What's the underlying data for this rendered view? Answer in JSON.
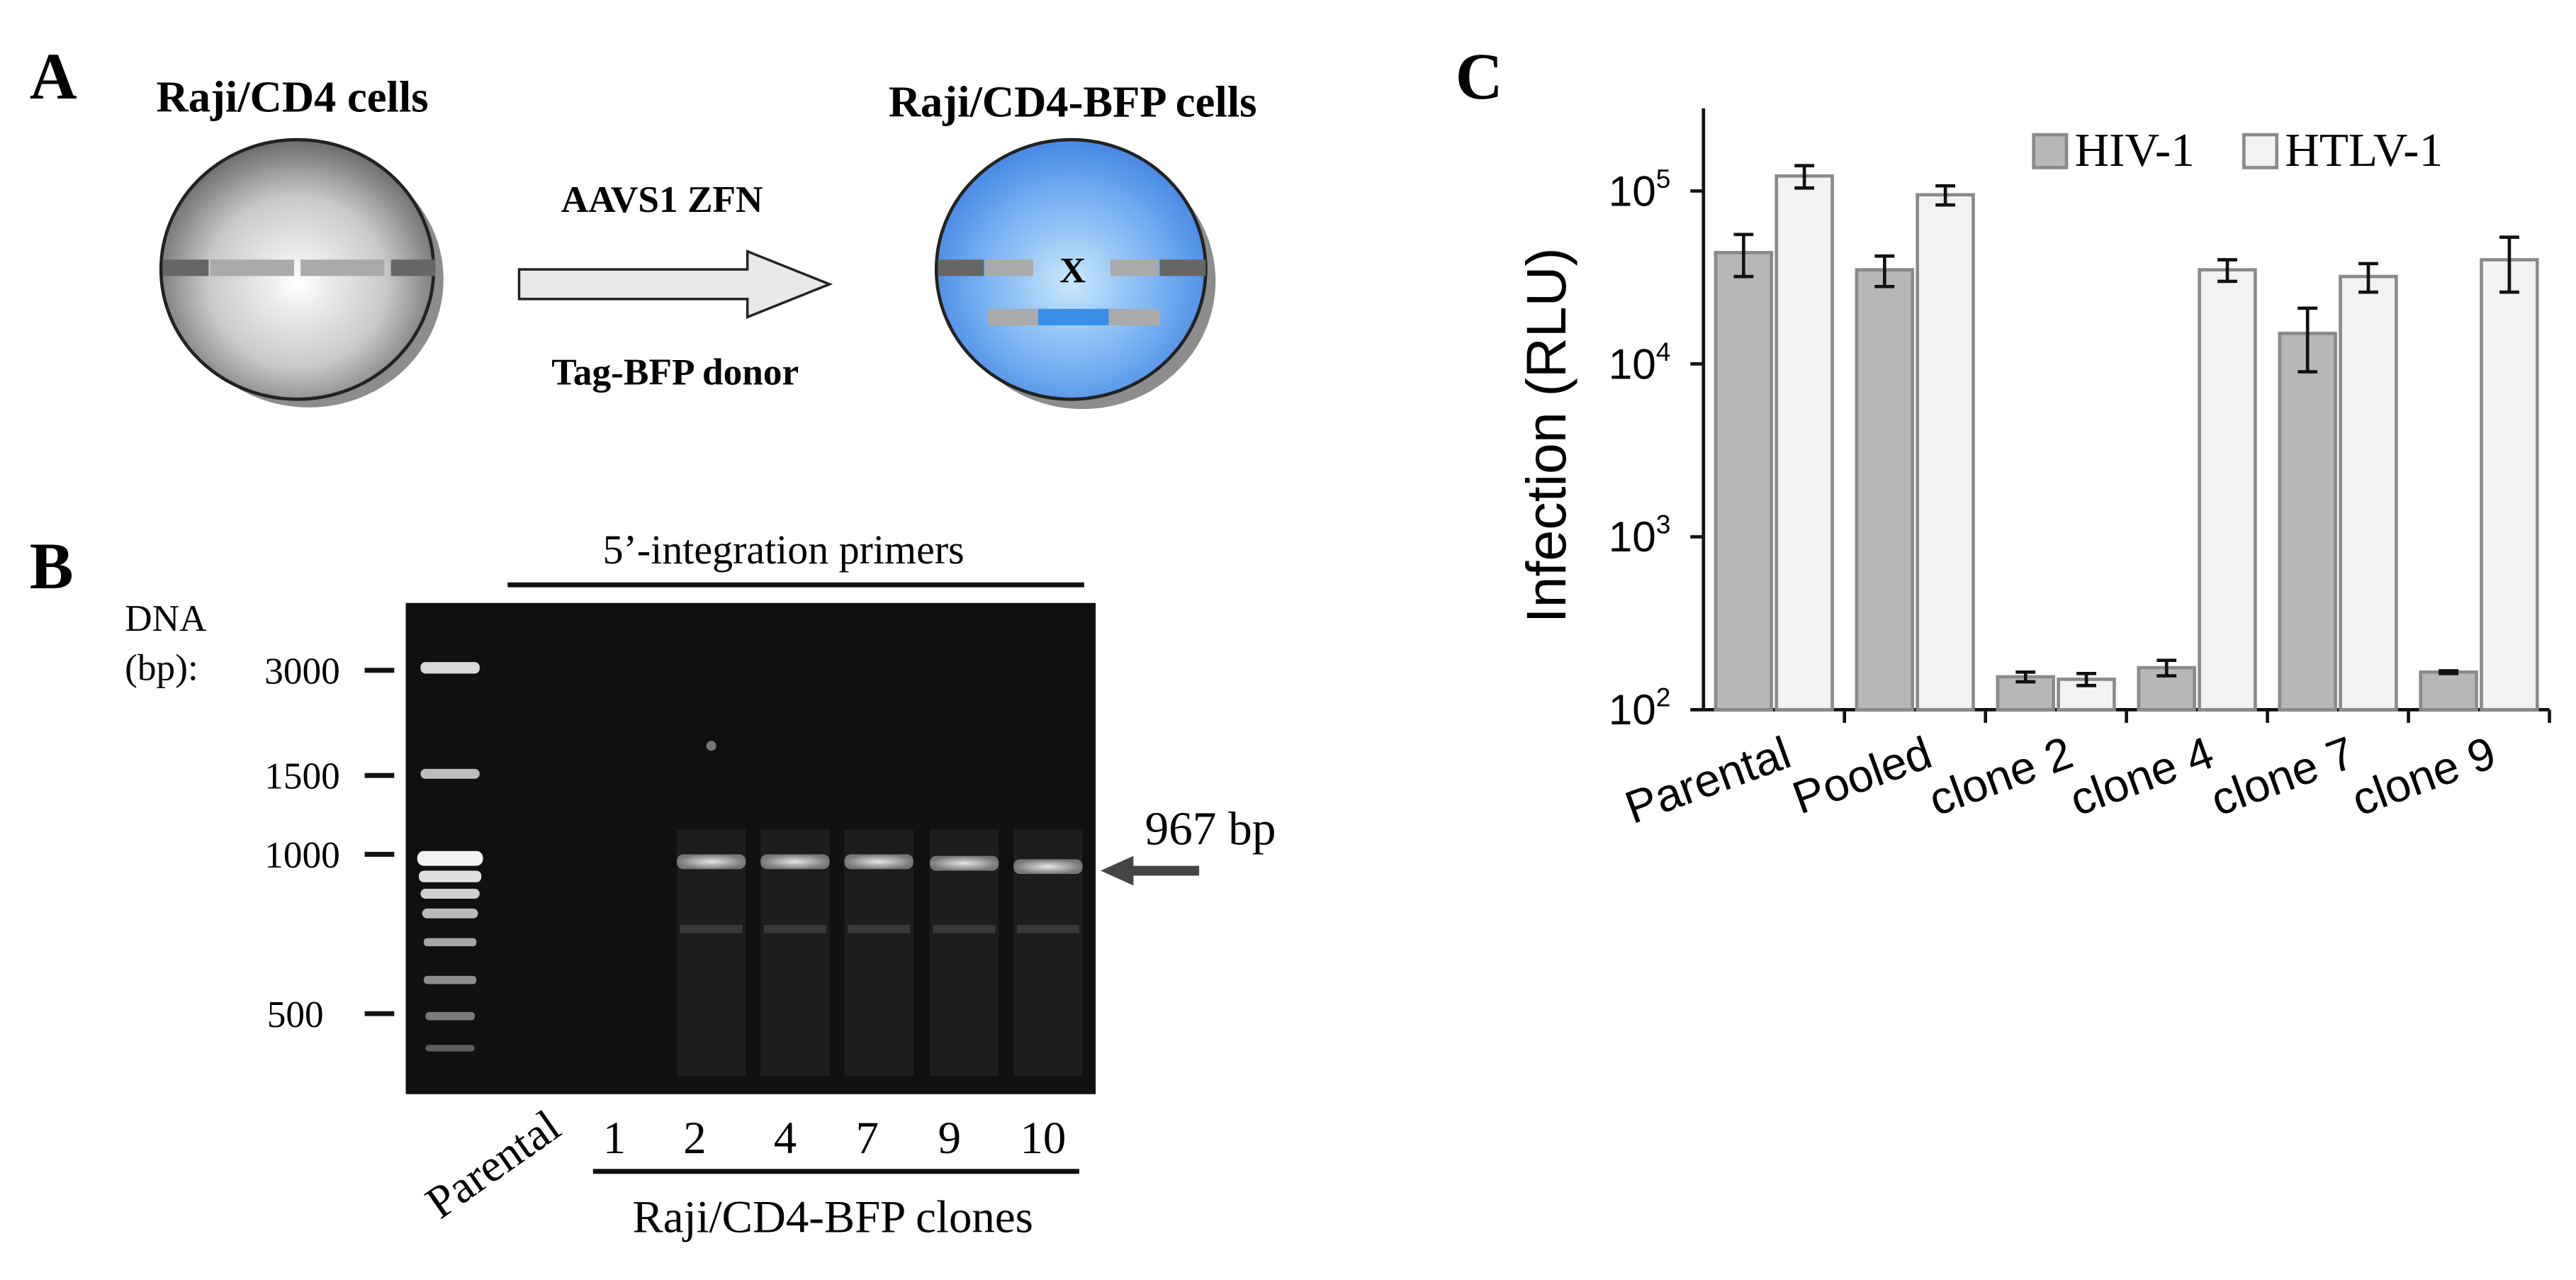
{
  "panel_a": {
    "letter": "A",
    "left_cell_label": "Raji/CD4 cells",
    "right_cell_label": "Raji/CD4-BFP cells",
    "arrow_top_label": "AAVS1 ZFN",
    "arrow_bottom_label": "Tag-BFP donor",
    "integration_mark": "X",
    "colors": {
      "bfp": "#3a8ee8",
      "arrow_fill": "#e8e8e8"
    }
  },
  "panel_b": {
    "letter": "B",
    "primers_label": "5’-integration primers",
    "dna_label_line1": "DNA",
    "dna_label_line2": "(bp):",
    "markers": [
      "3000",
      "1500",
      "1000",
      "500"
    ],
    "band_label": "967 bp",
    "lane_parental": "Parental",
    "lanes": [
      "1",
      "2",
      "4",
      "7",
      "9",
      "10"
    ],
    "clones_label": "Raji/CD4-BFP clones"
  },
  "panel_c": {
    "letter": "C"
  },
  "chart_data": {
    "type": "bar",
    "categories": [
      "Parental",
      "Pooled",
      "clone 2",
      "clone 4",
      "clone 7",
      "clone 9"
    ],
    "series": [
      {
        "name": "HIV-1",
        "values": [
          44000,
          35000,
          155,
          175,
          15000,
          165
        ],
        "errors": [
          12000,
          7000,
          10,
          18,
          6000,
          3
        ],
        "color": "#b7b7b7"
      },
      {
        "name": "HTLV-1",
        "values": [
          122000,
          95000,
          150,
          35000,
          32000,
          40000
        ],
        "errors": [
          18000,
          12000,
          12,
          5000,
          6000,
          14000
        ],
        "color": "#f2f2f2"
      }
    ],
    "title": "",
    "xlabel": "",
    "ylabel": "Infection (RLU)",
    "yscale": "log",
    "ylim": [
      100,
      300000
    ],
    "yticks": [
      {
        "value": 100,
        "base": "10",
        "exp": "2"
      },
      {
        "value": 1000,
        "base": "10",
        "exp": "3"
      },
      {
        "value": 10000,
        "base": "10",
        "exp": "4"
      },
      {
        "value": 100000,
        "base": "10",
        "exp": "5"
      }
    ],
    "legend_position": "top-right",
    "grid": false
  }
}
